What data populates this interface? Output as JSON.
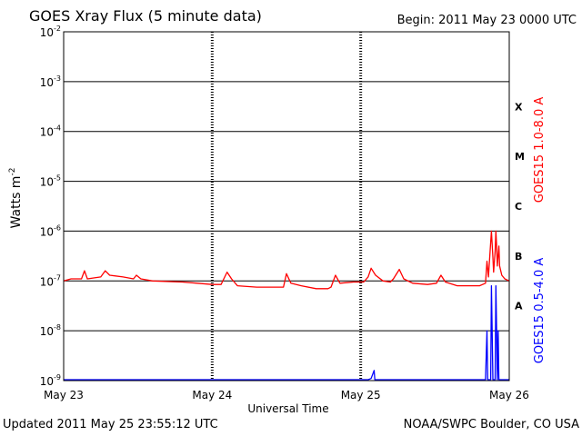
{
  "header": {
    "title": "GOES Xray Flux (5 minute data)",
    "begin_label": "Begin:  2011 May 23 0000 UTC"
  },
  "footer": {
    "updated": "Updated 2011 May 25 23:55:12 UTC",
    "credit": "NOAA/SWPC Boulder, CO USA"
  },
  "colors": {
    "long_channel": "#ff0000",
    "short_channel": "#0000ff",
    "axis": "#000000"
  },
  "chart_data": {
    "type": "line",
    "xlabel": "Universal Time",
    "ylabel": "Watts m",
    "ylabel_superscript": "-2",
    "yscale": "log",
    "ylim": [
      1e-09,
      0.01
    ],
    "xlim_days": [
      0,
      3
    ],
    "grid": "horizontal",
    "x_ticks": [
      "May 23",
      "May 24",
      "May 25",
      "May 26"
    ],
    "y_ticks": [
      {
        "base": "10",
        "exp": "-2"
      },
      {
        "base": "10",
        "exp": "-3"
      },
      {
        "base": "10",
        "exp": "-4"
      },
      {
        "base": "10",
        "exp": "-5"
      },
      {
        "base": "10",
        "exp": "-6"
      },
      {
        "base": "10",
        "exp": "-7"
      },
      {
        "base": "10",
        "exp": "-8"
      },
      {
        "base": "10",
        "exp": "-9"
      }
    ],
    "flare_classes": [
      "X",
      "M",
      "C",
      "B",
      "A"
    ],
    "series": [
      {
        "name": "GOES15 1.0-8.0 A",
        "color": "#ff0000",
        "points": [
          [
            0.0,
            1e-07
          ],
          [
            0.05,
            1.1e-07
          ],
          [
            0.12,
            1.1e-07
          ],
          [
            0.14,
            1.6e-07
          ],
          [
            0.16,
            1.1e-07
          ],
          [
            0.25,
            1.2e-07
          ],
          [
            0.28,
            1.6e-07
          ],
          [
            0.31,
            1.3e-07
          ],
          [
            0.4,
            1.2e-07
          ],
          [
            0.47,
            1.1e-07
          ],
          [
            0.49,
            1.3e-07
          ],
          [
            0.52,
            1.1e-07
          ],
          [
            0.6,
            1e-07
          ],
          [
            0.8,
            9.5e-08
          ],
          [
            0.9,
            9e-08
          ],
          [
            1.0,
            8.5e-08
          ],
          [
            1.06,
            8.5e-08
          ],
          [
            1.1,
            1.5e-07
          ],
          [
            1.13,
            1.1e-07
          ],
          [
            1.17,
            8e-08
          ],
          [
            1.3,
            7.5e-08
          ],
          [
            1.42,
            7.5e-08
          ],
          [
            1.48,
            7.5e-08
          ],
          [
            1.5,
            1.4e-07
          ],
          [
            1.53,
            9e-08
          ],
          [
            1.6,
            8e-08
          ],
          [
            1.7,
            7e-08
          ],
          [
            1.78,
            7e-08
          ],
          [
            1.8,
            7.5e-08
          ],
          [
            1.83,
            1.3e-07
          ],
          [
            1.86,
            9e-08
          ],
          [
            1.95,
            9.5e-08
          ],
          [
            2.02,
            9.5e-08
          ],
          [
            2.05,
            1.2e-07
          ],
          [
            2.07,
            1.8e-07
          ],
          [
            2.1,
            1.3e-07
          ],
          [
            2.15,
            1e-07
          ],
          [
            2.2,
            9.5e-08
          ],
          [
            2.22,
            1.1e-07
          ],
          [
            2.26,
            1.7e-07
          ],
          [
            2.29,
            1.1e-07
          ],
          [
            2.35,
            9e-08
          ],
          [
            2.45,
            8.5e-08
          ],
          [
            2.51,
            9e-08
          ],
          [
            2.54,
            1.3e-07
          ],
          [
            2.57,
            9.5e-08
          ],
          [
            2.65,
            8e-08
          ],
          [
            2.75,
            8e-08
          ],
          [
            2.8,
            8e-08
          ],
          [
            2.84,
            9e-08
          ],
          [
            2.85,
            2.5e-07
          ],
          [
            2.86,
            1.2e-07
          ],
          [
            2.875,
            6e-07
          ],
          [
            2.88,
            1e-06
          ],
          [
            2.89,
            3e-07
          ],
          [
            2.895,
            1.5e-07
          ],
          [
            2.905,
            4e-07
          ],
          [
            2.91,
            1e-06
          ],
          [
            2.915,
            5e-07
          ],
          [
            2.92,
            2e-07
          ],
          [
            2.93,
            5e-07
          ],
          [
            2.935,
            2e-07
          ],
          [
            2.95,
            1.3e-07
          ],
          [
            2.97,
            1.1e-07
          ],
          [
            3.0,
            1e-07
          ]
        ]
      },
      {
        "name": "GOES15 0.5-4.0 A",
        "color": "#0000ff",
        "points": [
          [
            0.0,
            7e-10
          ],
          [
            0.76,
            7e-10
          ],
          [
            0.765,
            1e-09
          ],
          [
            0.77,
            7e-10
          ],
          [
            0.99,
            7e-10
          ],
          [
            1.0,
            1e-09
          ],
          [
            1.005,
            7e-10
          ],
          [
            1.29,
            7e-10
          ],
          [
            1.3,
            1e-09
          ],
          [
            1.305,
            7e-10
          ],
          [
            2.05,
            7e-10
          ],
          [
            2.07,
            1.1e-09
          ],
          [
            2.09,
            1.6e-09
          ],
          [
            2.095,
            7e-10
          ],
          [
            2.84,
            7e-10
          ],
          [
            2.85,
            1e-08
          ],
          [
            2.855,
            8e-10
          ],
          [
            2.875,
            8e-10
          ],
          [
            2.88,
            8e-08
          ],
          [
            2.885,
            1e-08
          ],
          [
            2.89,
            8e-10
          ],
          [
            2.905,
            8e-10
          ],
          [
            2.91,
            8e-08
          ],
          [
            2.915,
            1e-08
          ],
          [
            2.92,
            8e-10
          ],
          [
            2.925,
            1e-08
          ],
          [
            2.93,
            8e-10
          ],
          [
            3.0,
            7e-10
          ]
        ]
      }
    ]
  }
}
